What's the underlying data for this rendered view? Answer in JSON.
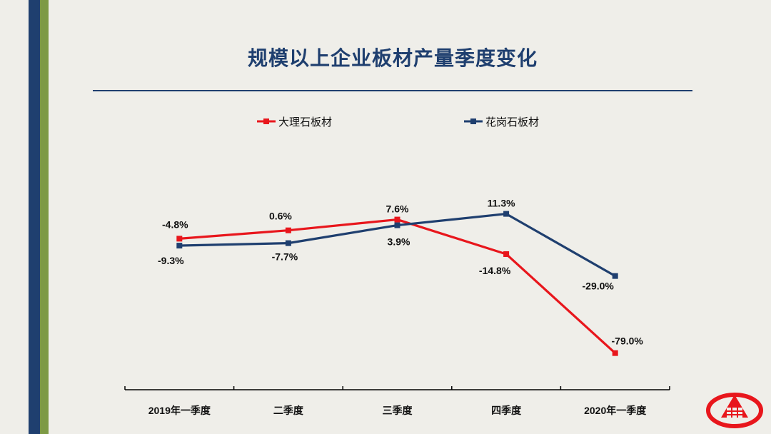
{
  "title": "规模以上企业板材产量季度变化",
  "chart_data": {
    "type": "line",
    "title": "规模以上企业板材产量季度变化",
    "categories": [
      "2019年一季度",
      "二季度",
      "三季度",
      "四季度",
      "2020年一季度"
    ],
    "series": [
      {
        "name": "大理石板材",
        "color": "#e8161c",
        "values": [
          -4.8,
          0.6,
          7.6,
          -14.8,
          -79.0
        ],
        "labels": [
          "-4.8%",
          "0.6%",
          "7.6%",
          "-14.8%",
          "-79.0%"
        ]
      },
      {
        "name": "花岗石板材",
        "color": "#1f3f6f",
        "values": [
          -9.3,
          -7.7,
          3.9,
          11.3,
          -29.0
        ],
        "labels": [
          "-9.3%",
          "-7.7%",
          "3.9%",
          "11.3%",
          "-29.0%"
        ]
      }
    ],
    "legend": "top",
    "ylim": [
      -100,
      25
    ],
    "xlabel": "",
    "ylabel": ""
  }
}
